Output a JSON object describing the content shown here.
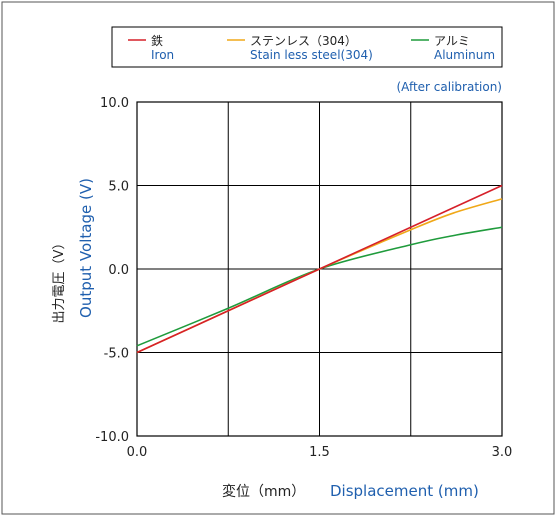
{
  "colors": {
    "iron": "#d6202a",
    "stainless": "#f0a818",
    "aluminum": "#1f9b3c",
    "english_text": "#1f5fae",
    "axis_text": "#222222",
    "grid": "#000000"
  },
  "chart_data": {
    "type": "line",
    "note": "(After calibration)",
    "xlabel_ja": "変位（mm）",
    "xlabel_en": "Displacement (mm)",
    "ylabel_ja": "出力電圧（V）",
    "ylabel_en": "Output Voltage (V)",
    "xlim": [
      0.0,
      3.0
    ],
    "ylim": [
      -10.0,
      10.0
    ],
    "xticks": [
      "0.0",
      "1.5",
      "3.0"
    ],
    "yticks": [
      "10.0",
      "5.0",
      "0.0",
      "-5.0",
      "-10.0"
    ],
    "x_grid": [
      0,
      0.75,
      1.5,
      2.25,
      3.0
    ],
    "y_grid": [
      -10,
      -5,
      0,
      5,
      10
    ],
    "grid": true,
    "legend_position": "top",
    "series": [
      {
        "key": "iron",
        "name_ja": "鉄",
        "name_en": "Iron",
        "x": [
          0,
          0.75,
          1.5,
          2.25,
          3.0
        ],
        "y": [
          -5.0,
          -2.5,
          0.0,
          2.5,
          5.0
        ]
      },
      {
        "key": "stainless",
        "name_ja": "ステンレス（304）",
        "name_en": "Stain less steel(304)",
        "x": [
          0,
          0.75,
          1.5,
          2.25,
          2.6,
          3.0
        ],
        "y": [
          -5.0,
          -2.5,
          0.0,
          2.35,
          3.35,
          4.2
        ]
      },
      {
        "key": "aluminum",
        "name_ja": "アルミ",
        "name_en": "Aluminum",
        "x": [
          0,
          0.75,
          1.5,
          2.25,
          2.6,
          3.0
        ],
        "y": [
          -4.6,
          -2.35,
          0.0,
          1.45,
          2.0,
          2.5
        ]
      }
    ]
  }
}
